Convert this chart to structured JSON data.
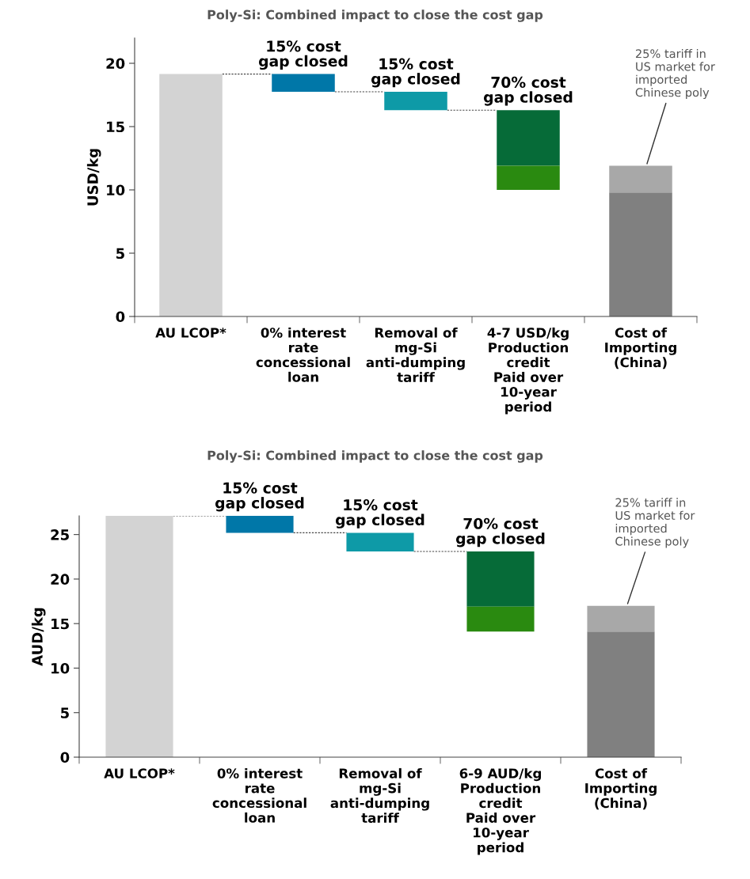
{
  "chart_data": [
    {
      "type": "bar",
      "title": "Poly-Si: Combined impact to close the cost gap",
      "ylabel": "USD/kg",
      "categories": [
        "AU LCOP*",
        "0% interest\nrate\nconcessional\nloan",
        "Removal of\nmg-Si\nanti-dumping\ntariff",
        "4-7 USD/kg\nProduction\ncredit\nPaid over\n10-year\nperiod",
        "Cost of\nImporting\n(China)"
      ],
      "series": [
        {
          "values": [
            19.15,
            -1.4,
            -1.45,
            -4.4,
            9.8
          ],
          "base": [
            0,
            19.15,
            17.75,
            16.3,
            0
          ],
          "colors": [
            "#d3d3d3",
            "#0077a8",
            "#0e9aa7",
            "#066b38",
            "#808080"
          ]
        },
        {
          "values": [
            null,
            null,
            null,
            -1.9,
            2.1
          ],
          "base": [
            null,
            null,
            null,
            11.9,
            9.8
          ],
          "colors": [
            null,
            null,
            null,
            "#2a8a10",
            "#a8a8a8"
          ]
        }
      ],
      "ylim": [
        0,
        22
      ],
      "yticks": [
        0,
        5,
        10,
        15,
        20
      ],
      "annotations": [
        {
          "text": "15% cost\ngap closed",
          "x": "0% interest\nrate\nconcessional\nloan",
          "y": 19.15
        },
        {
          "text": "15% cost\ngap closed",
          "x": "Removal of\nmg-Si\nanti-dumping\ntariff",
          "y": 17.75
        },
        {
          "text": "70% cost\ngap closed",
          "x": "4-7 USD/kg\nProduction\ncredit\nPaid over\n10-year\nperiod",
          "y": 16.3
        },
        {
          "text": "25% tariff in\nUS market for\nimported\nChinese poly",
          "x": "Cost of\nImporting\n(China)",
          "y": 11.9
        }
      ]
    },
    {
      "type": "bar",
      "title": "Poly-Si: Combined impact to close the cost gap",
      "ylabel": "AUD/kg",
      "categories": [
        "AU LCOP*",
        "0% interest\nrate\nconcessional\nloan",
        "Removal of\nmg-Si\nanti-dumping\ntariff",
        "6-9 AUD/kg\nProduction\ncredit\nPaid over\n10-year\nperiod",
        "Cost of\nImporting\n(China)"
      ],
      "series": [
        {
          "values": [
            27.1,
            -1.9,
            -2.1,
            -6.2,
            14.1
          ],
          "base": [
            0,
            27.1,
            25.2,
            23.1,
            0
          ],
          "colors": [
            "#d3d3d3",
            "#0077a8",
            "#0e9aa7",
            "#066b38",
            "#808080"
          ]
        },
        {
          "values": [
            null,
            null,
            null,
            -2.8,
            2.9
          ],
          "base": [
            null,
            null,
            null,
            16.9,
            14.1
          ],
          "colors": [
            null,
            null,
            null,
            "#2a8a10",
            "#a8a8a8"
          ]
        }
      ],
      "ylim": [
        0,
        27.1
      ],
      "yticks": [
        0,
        5,
        10,
        15,
        20,
        25
      ],
      "annotations": [
        {
          "text": "15% cost\ngap closed",
          "x": "0% interest\nrate\nconcessional\nloan",
          "y": 27.1
        },
        {
          "text": "15% cost\ngap closed",
          "x": "Removal of\nmg-Si\nanti-dumping\ntariff",
          "y": 25.2
        },
        {
          "text": "70% cost\ngap closed",
          "x": "6-9 AUD/kg\nProduction\ncredit\nPaid over\n10-year\nperiod",
          "y": 23.1
        },
        {
          "text": "25% tariff in\nUS market for\nimported\nChinese poly",
          "x": "Cost of\nImporting\n(China)",
          "y": 17.0
        }
      ]
    }
  ]
}
